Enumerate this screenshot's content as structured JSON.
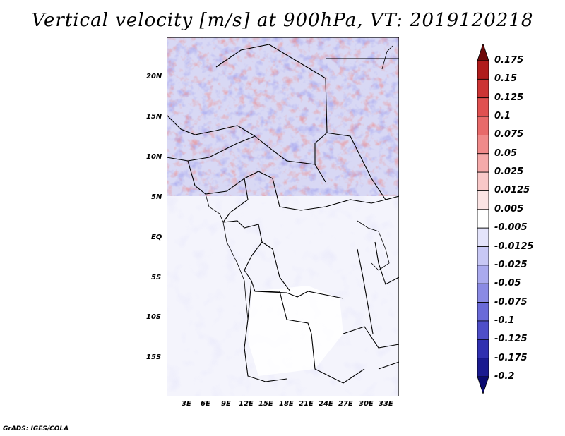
{
  "title": "Vertical velocity [m/s] at 900hPa, VT: 2019120218",
  "footer": "GrADS: IGES/COLA",
  "lat_labels": [
    "20N",
    "15N",
    "10N",
    "5N",
    "EQ",
    "5S",
    "10S",
    "15S"
  ],
  "lon_labels": [
    "3E",
    "6E",
    "9E",
    "12E",
    "15E",
    "18E",
    "21E",
    "24E",
    "27E",
    "30E",
    "33E"
  ],
  "colorbar": {
    "labels": [
      "0.175",
      "0.15",
      "0.125",
      "0.1",
      "0.075",
      "0.05",
      "0.025",
      "0.0125",
      "0.005",
      "-0.005",
      "-0.0125",
      "-0.025",
      "-0.05",
      "-0.075",
      "-0.1",
      "-0.125",
      "-0.175",
      "-0.2"
    ],
    "colors": [
      "#6e0a0a",
      "#b01c1c",
      "#cc3434",
      "#e05050",
      "#e86a6a",
      "#f08a8a",
      "#f5aaaa",
      "#f8c8c8",
      "#fbe4e4",
      "#ffffff",
      "#e4e4fb",
      "#c8c8f5",
      "#aaaaee",
      "#8a8ae4",
      "#6a6ad8",
      "#4e4ec8",
      "#3030b0",
      "#1a1a90",
      "#0a0a70"
    ]
  }
}
